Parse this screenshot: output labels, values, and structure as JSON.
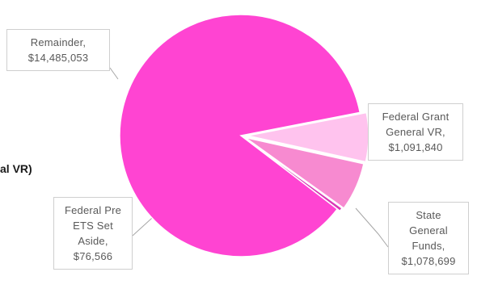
{
  "chart_data": {
    "type": "pie",
    "title_fragment": "al VR)",
    "slices": [
      {
        "name": "Remainder",
        "value": 14485053,
        "label_lines": [
          "Remainder,",
          "$14,485,053"
        ],
        "color": "#ff44d2"
      },
      {
        "name": "Federal Grant General VR",
        "value": 1091840,
        "label_lines": [
          "Federal Grant",
          "General VR,",
          "$1,091,840"
        ],
        "color": "#ffc3ee"
      },
      {
        "name": "State General Funds",
        "value": 1078699,
        "label_lines": [
          "State",
          "General",
          "Funds,",
          "$1,078,699"
        ],
        "color": "#f78ad0"
      },
      {
        "name": "Federal Pre ETS Set Aside",
        "value": 76566,
        "label_lines": [
          "Federal Pre",
          "ETS Set",
          "Aside,",
          "$76,566"
        ],
        "color": "#d838b6"
      }
    ]
  }
}
